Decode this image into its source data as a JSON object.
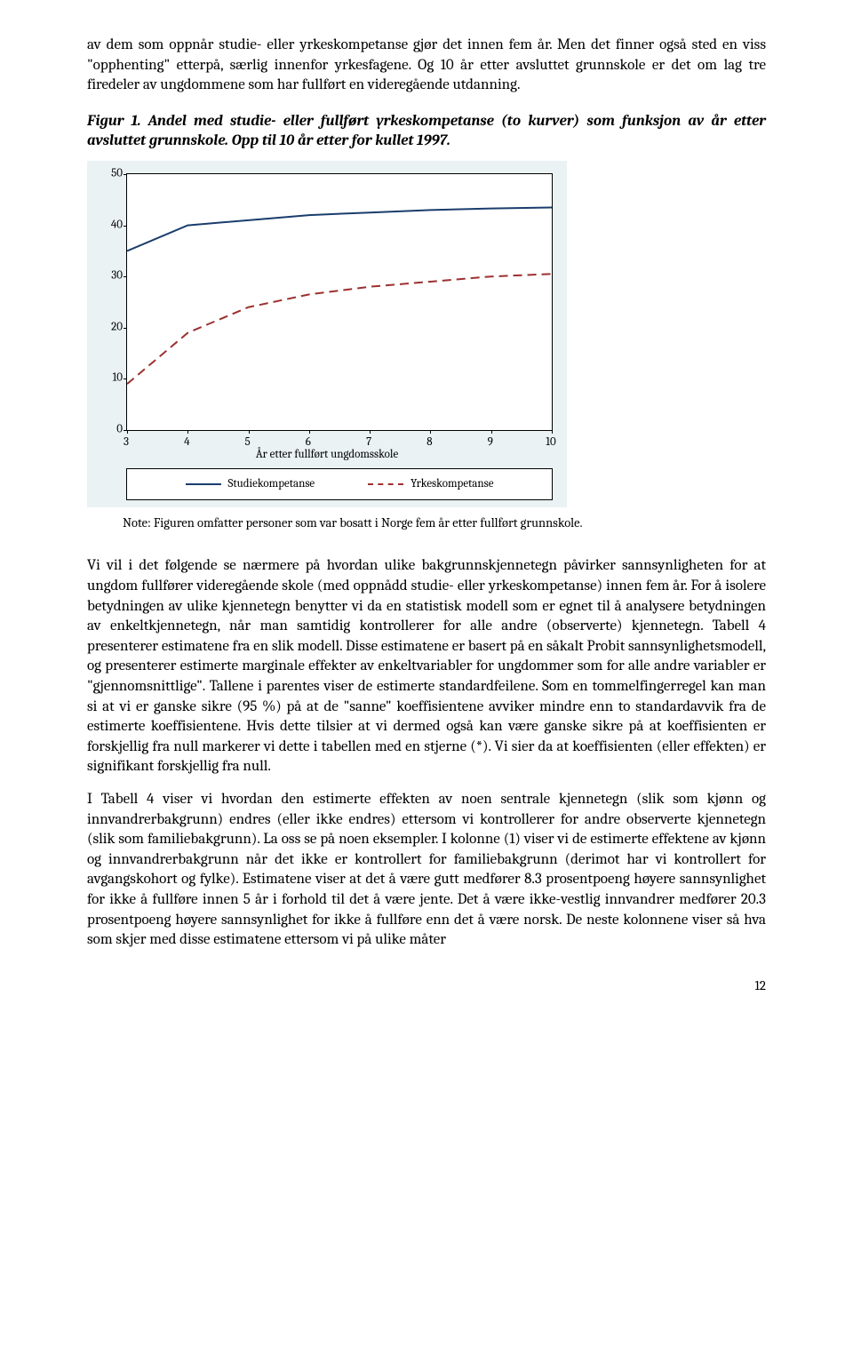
{
  "para1": "av dem som oppnår studie- eller yrkeskompetanse gjør det innen fem år. Men det finner også sted en viss \"opphenting\" etterpå, særlig innenfor yrkesfagene. Og 10 år etter avsluttet grunnskole er det om lag tre firedeler av ungdommene som har fullført en videregående utdanning.",
  "figCaption": "Figur 1. Andel med studie- eller fullført yrkeskompetanse (to kurver) som funksjon av år etter avsluttet grunnskole. Opp til 10 år etter for kullet 1997.",
  "note": "Note: Figuren omfatter personer som var bosatt i Norge fem år etter fullført grunnskole.",
  "para2": "Vi vil i det følgende se nærmere på hvordan ulike bakgrunnskjennetegn påvirker sannsynligheten for at ungdom fullfører videregående skole (med oppnådd studie- eller yrkeskompetanse) innen fem år. For å isolere betydningen av ulike kjennetegn benytter vi da en statistisk modell som er egnet til å analysere betydningen av enkeltkjennetegn, når man samtidig kontrollerer for alle andre (observerte) kjennetegn. Tabell 4 presenterer estimatene fra en slik modell. Disse estimatene er basert på en såkalt Probit sannsynlighetsmodell, og presenterer estimerte marginale effekter av enkeltvariabler for ungdommer som for alle andre variabler er \"gjennomsnittlige\". Tallene i parentes viser de estimerte standardfeilene. Som en tommelfingerregel kan man si at vi er ganske sikre (95 %) på at de \"sanne\" koeffisientene avviker mindre enn to standardavvik fra de estimerte koeffisientene. Hvis dette tilsier at vi dermed også kan være ganske sikre på at koeffisienten er forskjellig fra null markerer vi dette i tabellen med en stjerne (*). Vi sier da at koeffisienten (eller effekten) er signifikant forskjellig fra null.",
  "para3": "I Tabell 4 viser vi hvordan den estimerte effekten av noen sentrale kjennetegn (slik som kjønn og innvandrerbakgrunn) endres (eller ikke endres) ettersom vi kontrollerer for andre observerte kjennetegn (slik som familiebakgrunn). La oss se på noen eksempler. I kolonne (1) viser vi de estimerte effektene av kjønn og innvandrerbakgrunn når det ikke er kontrollert for familiebakgrunn (derimot har vi kontrollert for avgangskohort og fylke). Estimatene viser at det å være gutt medfører 8.3 prosentpoeng høyere sannsynlighet for ikke å fullføre innen 5 år i forhold til det å være jente. Det å være ikke-vestlig innvandrer medfører 20.3 prosentpoeng høyere sannsynlighet for ikke å fullføre enn det å være norsk. De neste kolonnene viser så hva som skjer med disse estimatene ettersom vi på ulike måter",
  "pageNum": "12",
  "chart": {
    "type": "line",
    "background_color": "#eaf2f3",
    "plot_bg": "#ffffff",
    "border_color": "#000000",
    "xlabel": "År etter fullført ungdomsskole",
    "label_fontsize": 13,
    "tick_fontsize": 13,
    "xlim": [
      3,
      10
    ],
    "ylim": [
      0,
      50
    ],
    "yticks": [
      0,
      10,
      20,
      30,
      40,
      50
    ],
    "xticks": [
      3,
      4,
      5,
      6,
      7,
      8,
      9,
      10
    ],
    "series": [
      {
        "name": "Studiekompetanse",
        "color": "#1a3d6d",
        "dash": "solid",
        "width": 2,
        "x": [
          3,
          4,
          5,
          6,
          7,
          8,
          9,
          10
        ],
        "y": [
          35,
          40,
          41,
          42,
          42.5,
          43,
          43.3,
          43.5
        ]
      },
      {
        "name": "Yrkeskompetanse",
        "color": "#9c3030",
        "dash": "dashed",
        "width": 2,
        "x": [
          3,
          4,
          5,
          6,
          7,
          8,
          9,
          10
        ],
        "y": [
          9,
          19,
          24,
          26.5,
          28,
          29,
          30,
          30.5
        ]
      }
    ],
    "legend": [
      "Studiekompetanse",
      "Yrkeskompetanse"
    ]
  }
}
